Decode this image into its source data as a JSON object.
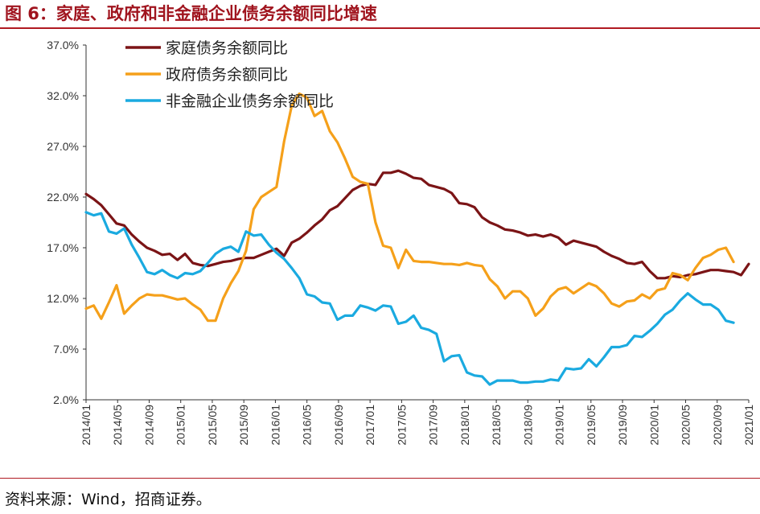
{
  "figure": {
    "title": "图 6：家庭、政府和非金融企业债务余额同比增速",
    "source": "资料来源：Wind，招商证券。"
  },
  "chart_data": {
    "type": "line",
    "ylim": [
      2.0,
      37.0
    ],
    "yticks": [
      "2.0%",
      "7.0%",
      "12.0%",
      "17.0%",
      "22.0%",
      "27.0%",
      "32.0%",
      "37.0%"
    ],
    "xticks": [
      "2014/01",
      "2014/05",
      "2014/09",
      "2015/01",
      "2015/05",
      "2015/09",
      "2016/01",
      "2016/05",
      "2016/09",
      "2017/01",
      "2017/05",
      "2017/09",
      "2018/01",
      "2018/05",
      "2018/09",
      "2019/01",
      "2019/05",
      "2019/09",
      "2020/01",
      "2020/05",
      "2020/09",
      "2021/01"
    ],
    "legend_position": "top-left",
    "grid": false,
    "series": [
      {
        "name": "家庭债务余额同比",
        "color": "#7b1416",
        "values": [
          22.3,
          21.8,
          21.2,
          20.3,
          19.4,
          19.2,
          18.3,
          17.6,
          17.0,
          16.7,
          16.3,
          16.4,
          15.8,
          16.4,
          15.5,
          15.3,
          15.2,
          15.4,
          15.6,
          15.7,
          15.9,
          16.0,
          16.0,
          16.3,
          16.6,
          16.9,
          16.2,
          17.5,
          17.9,
          18.5,
          19.2,
          19.8,
          20.7,
          21.1,
          21.9,
          22.7,
          23.1,
          23.3,
          23.2,
          24.4,
          24.4,
          24.6,
          24.3,
          23.9,
          23.8,
          23.2,
          23.0,
          22.8,
          22.4,
          21.4,
          21.3,
          21.0,
          20.0,
          19.5,
          19.2,
          18.8,
          18.7,
          18.5,
          18.2,
          18.3,
          18.1,
          18.3,
          18.0,
          17.3,
          17.7,
          17.5,
          17.3,
          17.1,
          16.6,
          16.2,
          15.9,
          15.5,
          15.4,
          15.6,
          14.7,
          14.0,
          14.0,
          14.2,
          14.1,
          14.3,
          14.4,
          14.6,
          14.8,
          14.8,
          14.7,
          14.6,
          14.3,
          15.4
        ]
      },
      {
        "name": "政府债务余额同比",
        "color": "#f5a01a",
        "values": [
          11.0,
          11.3,
          10.0,
          11.6,
          13.3,
          10.5,
          11.3,
          12.0,
          12.4,
          12.3,
          12.3,
          12.1,
          11.9,
          12.0,
          11.4,
          10.9,
          9.8,
          9.8,
          12.0,
          13.5,
          14.7,
          16.7,
          20.8,
          22.0,
          22.5,
          23.0,
          27.5,
          31.0,
          32.2,
          31.8,
          30.0,
          30.5,
          28.5,
          27.4,
          25.8,
          24.0,
          23.5,
          23.3,
          19.5,
          17.2,
          17.0,
          15.0,
          16.8,
          15.7,
          15.6,
          15.6,
          15.5,
          15.4,
          15.4,
          15.3,
          15.5,
          15.3,
          15.2,
          13.9,
          13.2,
          12.0,
          12.7,
          12.7,
          12.0,
          10.3,
          11.0,
          12.2,
          12.9,
          13.1,
          12.5,
          13.0,
          13.5,
          13.2,
          12.5,
          11.5,
          11.2,
          11.7,
          11.8,
          12.4,
          12.0,
          12.8,
          13.0,
          14.5,
          14.3,
          13.8,
          15.0,
          16.0,
          16.3,
          16.8,
          17.0,
          15.6
        ]
      },
      {
        "name": "非金融企业债务余额同比",
        "color": "#1aaae0",
        "values": [
          20.5,
          20.2,
          20.4,
          18.6,
          18.4,
          18.9,
          17.3,
          16.0,
          14.6,
          14.4,
          14.8,
          14.3,
          14.0,
          14.5,
          14.4,
          14.7,
          15.5,
          16.4,
          16.9,
          17.1,
          16.6,
          18.6,
          18.2,
          18.3,
          17.3,
          16.5,
          15.9,
          15.0,
          14.0,
          12.4,
          12.2,
          11.6,
          11.5,
          9.9,
          10.3,
          10.3,
          11.3,
          11.1,
          10.8,
          11.3,
          11.2,
          9.5,
          9.7,
          10.3,
          9.1,
          8.9,
          8.5,
          5.8,
          6.3,
          6.4,
          4.7,
          4.4,
          4.3,
          3.5,
          3.9,
          3.9,
          3.9,
          3.7,
          3.7,
          3.8,
          3.8,
          4.0,
          3.9,
          5.1,
          5.0,
          5.1,
          6.0,
          5.3,
          6.2,
          7.2,
          7.2,
          7.4,
          8.3,
          8.2,
          8.8,
          9.5,
          10.4,
          10.9,
          11.8,
          12.5,
          11.9,
          11.4,
          11.4,
          10.9,
          9.8,
          9.6
        ]
      }
    ]
  }
}
